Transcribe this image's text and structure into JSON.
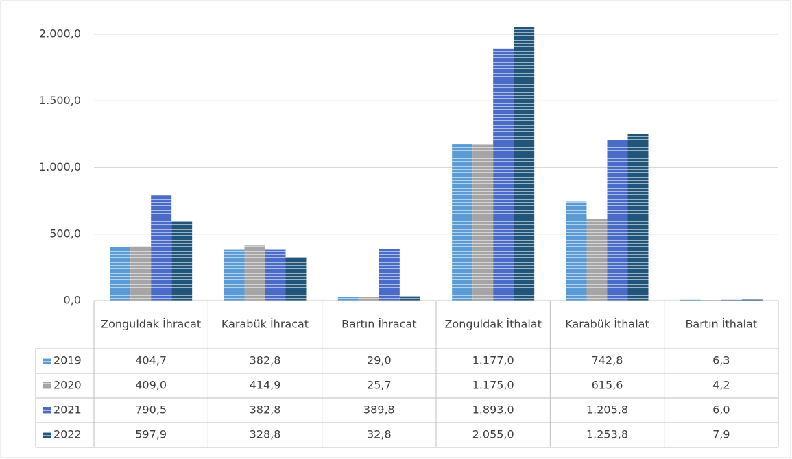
{
  "chart_data": {
    "type": "bar",
    "categories": [
      "Zonguldak İhracat",
      "Karabük İhracat",
      "Bartın İhracat",
      "Zonguldak İthalat",
      "Karabük İthalat",
      "Bartın İthalat"
    ],
    "series": [
      {
        "name": "2019",
        "color": "#5b9bd5",
        "values": [
          404.7,
          382.8,
          29.0,
          1177.0,
          742.8,
          6.3
        ],
        "value_labels": [
          "404,7",
          "382,8",
          "29,0",
          "1.177,0",
          "742,8",
          "6,3"
        ]
      },
      {
        "name": "2020",
        "color": "#a5a5a5",
        "values": [
          409.0,
          414.9,
          25.7,
          1175.0,
          615.6,
          4.2
        ],
        "value_labels": [
          "409,0",
          "414,9",
          "25,7",
          "1.175,0",
          "615,6",
          "4,2"
        ]
      },
      {
        "name": "2021",
        "color": "#4a6bc8",
        "values": [
          790.5,
          382.8,
          389.8,
          1893.0,
          1205.8,
          6.0
        ],
        "value_labels": [
          "790,5",
          "382,8",
          "389,8",
          "1.893,0",
          "1.205,8",
          "6,0"
        ]
      },
      {
        "name": "2022",
        "color": "#22557a",
        "values": [
          597.9,
          328.8,
          32.8,
          2055.0,
          1253.8,
          7.9
        ],
        "value_labels": [
          "597,9",
          "328,8",
          "32,8",
          "2.055,0",
          "1.253,8",
          "7,9"
        ]
      }
    ],
    "ylim": [
      0,
      2000
    ],
    "yticks": [
      {
        "value": 0,
        "label": "0,0"
      },
      {
        "value": 500,
        "label": "500,0"
      },
      {
        "value": 1000,
        "label": "1.000,0"
      },
      {
        "value": 1500,
        "label": "1.500,0"
      },
      {
        "value": 2000,
        "label": "2.000,0"
      }
    ],
    "grid": true
  }
}
